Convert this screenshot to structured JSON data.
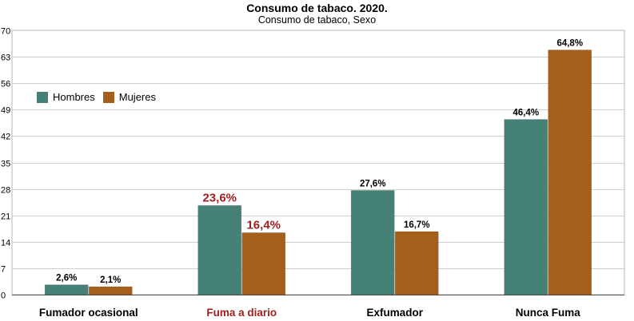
{
  "chart_data": {
    "type": "bar",
    "title": "Consumo de tabaco. 2020.",
    "subtitle": "Consumo de tabaco, Sexo",
    "categories": [
      "Fumador ocasional",
      "Fuma a diario",
      "Exfumador",
      "Nunca Fuma"
    ],
    "highlight_category_index": 1,
    "series": [
      {
        "name": "Hombres",
        "color": "#468177",
        "values": [
          2.6,
          23.6,
          27.6,
          46.4
        ],
        "labels": [
          "2,6%",
          "23,6%",
          "27,6%",
          "46,4%"
        ]
      },
      {
        "name": "Mujeres",
        "color": "#a65f1b",
        "values": [
          2.1,
          16.4,
          16.7,
          64.8
        ],
        "labels": [
          "2,1%",
          "16,4%",
          "16,7%",
          "64,8%"
        ]
      }
    ],
    "ylim": [
      0,
      70
    ],
    "yticks": [
      0,
      7,
      14,
      21,
      28,
      35,
      42,
      49,
      56,
      63,
      70
    ],
    "grid": true,
    "legend_position": "top-left",
    "highlight_color": "#a11f1f"
  }
}
